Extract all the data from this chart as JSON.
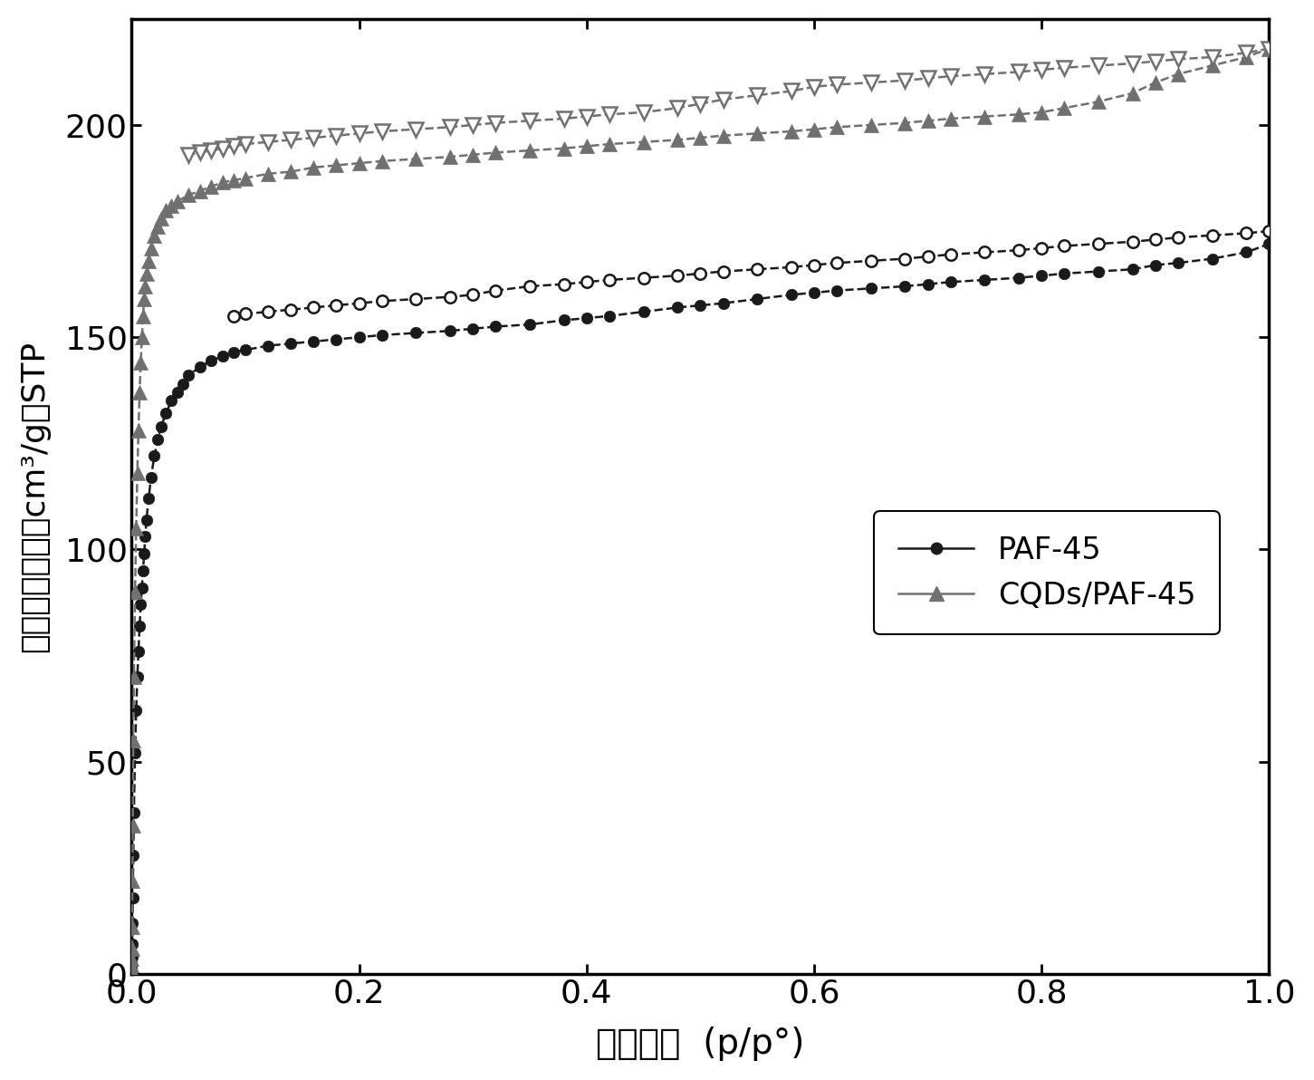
{
  "xlabel": "相对压力  (p/p°)",
  "ylabel": "吸（脱）附量（cm³/g）STP",
  "ylabel_vertical": "吸（脱）附量（cm³/g）STP",
  "xlim": [
    0.0,
    1.0
  ],
  "ylim": [
    0,
    225
  ],
  "yticks": [
    0,
    50,
    100,
    150,
    200
  ],
  "xticks": [
    0.0,
    0.2,
    0.4,
    0.6,
    0.8,
    1.0
  ],
  "legend_labels": [
    "PAF-45",
    "CQDs/PAF-45"
  ],
  "line_color_paf": "#1a1a1a",
  "line_color_cqd": "#707070",
  "figsize": [
    14.51,
    11.92
  ],
  "dpi": 100,
  "paf_ads_x": [
    5e-06,
    1e-05,
    3e-05,
    6e-05,
    0.0001,
    0.0002,
    0.0004,
    0.0007,
    0.001,
    0.0015,
    0.002,
    0.003,
    0.004,
    0.005,
    0.006,
    0.007,
    0.008,
    0.009,
    0.01,
    0.011,
    0.012,
    0.013,
    0.015,
    0.017,
    0.02,
    0.023,
    0.026,
    0.03,
    0.035,
    0.04,
    0.045,
    0.05,
    0.06,
    0.07,
    0.08,
    0.09,
    0.1,
    0.12,
    0.14,
    0.16,
    0.18,
    0.2,
    0.22,
    0.25,
    0.28,
    0.3,
    0.32,
    0.35,
    0.38,
    0.4,
    0.42,
    0.45,
    0.48,
    0.5,
    0.52,
    0.55,
    0.58,
    0.6,
    0.62,
    0.65,
    0.68,
    0.7,
    0.72,
    0.75,
    0.78,
    0.8,
    0.82,
    0.85,
    0.88,
    0.9,
    0.92,
    0.95,
    0.98,
    1.0
  ],
  "paf_ads_y": [
    0.3,
    0.5,
    0.8,
    1.5,
    2.5,
    4,
    7,
    12,
    18,
    28,
    38,
    52,
    62,
    70,
    76,
    82,
    87,
    91,
    95,
    99,
    103,
    107,
    112,
    117,
    122,
    126,
    129,
    132,
    135,
    137,
    139,
    141,
    143,
    144.5,
    145.5,
    146.5,
    147,
    148,
    148.5,
    149,
    149.5,
    150,
    150.5,
    151,
    151.5,
    152,
    152.5,
    153,
    154,
    154.5,
    155,
    156,
    157,
    157.5,
    158,
    159,
    160,
    160.5,
    161,
    161.5,
    162,
    162.5,
    163,
    163.5,
    164,
    164.5,
    165,
    165.5,
    166,
    167,
    167.5,
    168.5,
    170,
    172
  ],
  "paf_des_x": [
    1.0,
    0.98,
    0.95,
    0.92,
    0.9,
    0.88,
    0.85,
    0.82,
    0.8,
    0.78,
    0.75,
    0.72,
    0.7,
    0.68,
    0.65,
    0.62,
    0.6,
    0.58,
    0.55,
    0.52,
    0.5,
    0.48,
    0.45,
    0.42,
    0.4,
    0.38,
    0.35,
    0.32,
    0.3,
    0.28,
    0.25,
    0.22,
    0.2,
    0.18,
    0.16,
    0.14,
    0.12,
    0.1,
    0.09
  ],
  "paf_des_y": [
    175,
    174.5,
    174,
    173.5,
    173,
    172.5,
    172,
    171.5,
    171,
    170.5,
    170,
    169.5,
    169,
    168.5,
    168,
    167.5,
    167,
    166.5,
    166,
    165.5,
    165,
    164.5,
    164,
    163.5,
    163,
    162.5,
    162,
    161,
    160,
    159.5,
    159,
    158.5,
    158,
    157.5,
    157,
    156.5,
    156,
    155.5,
    155
  ],
  "cqd_ads_x": [
    5e-06,
    1e-05,
    3e-05,
    6e-05,
    0.0001,
    0.0002,
    0.0004,
    0.0007,
    0.001,
    0.0015,
    0.002,
    0.003,
    0.004,
    0.005,
    0.006,
    0.007,
    0.008,
    0.009,
    0.01,
    0.011,
    0.012,
    0.013,
    0.015,
    0.017,
    0.02,
    0.023,
    0.026,
    0.03,
    0.035,
    0.04,
    0.05,
    0.06,
    0.07,
    0.08,
    0.09,
    0.1,
    0.12,
    0.14,
    0.16,
    0.18,
    0.2,
    0.22,
    0.25,
    0.28,
    0.3,
    0.32,
    0.35,
    0.38,
    0.4,
    0.42,
    0.45,
    0.48,
    0.5,
    0.52,
    0.55,
    0.58,
    0.6,
    0.62,
    0.65,
    0.68,
    0.7,
    0.72,
    0.75,
    0.78,
    0.8,
    0.82,
    0.85,
    0.88,
    0.9,
    0.92,
    0.95,
    0.98,
    1.0
  ],
  "cqd_ads_y": [
    0.3,
    0.5,
    1,
    2,
    3.5,
    6,
    11,
    22,
    35,
    55,
    70,
    90,
    105,
    118,
    128,
    137,
    144,
    150,
    155,
    159,
    162,
    165,
    168,
    171,
    174,
    176,
    178,
    180,
    181,
    182,
    183.5,
    184.5,
    185.5,
    186.5,
    187,
    187.5,
    188.5,
    189,
    190,
    190.5,
    191,
    191.5,
    192,
    192.5,
    193,
    193.5,
    194,
    194.5,
    195,
    195.5,
    196,
    196.5,
    197,
    197.5,
    198,
    198.5,
    199,
    199.5,
    200,
    200.5,
    201,
    201.5,
    202,
    202.5,
    203,
    204,
    205.5,
    207.5,
    210,
    212,
    214,
    216,
    218
  ],
  "cqd_des_x": [
    1.0,
    0.98,
    0.95,
    0.92,
    0.9,
    0.88,
    0.85,
    0.82,
    0.8,
    0.78,
    0.75,
    0.72,
    0.7,
    0.68,
    0.65,
    0.62,
    0.6,
    0.58,
    0.55,
    0.52,
    0.5,
    0.48,
    0.45,
    0.42,
    0.4,
    0.38,
    0.35,
    0.32,
    0.3,
    0.28,
    0.25,
    0.22,
    0.2,
    0.18,
    0.16,
    0.14,
    0.12,
    0.1,
    0.09,
    0.08,
    0.07,
    0.06,
    0.05
  ],
  "cqd_des_y": [
    218,
    217,
    216,
    215.5,
    215,
    214.5,
    214,
    213.5,
    213,
    212.5,
    212,
    211.5,
    211,
    210.5,
    210,
    209.5,
    209,
    208,
    207,
    206,
    205,
    204,
    203,
    202.5,
    202,
    201.5,
    201,
    200.5,
    200,
    199.5,
    199,
    198.5,
    198,
    197.5,
    197,
    196.5,
    196,
    195.5,
    195,
    194.5,
    194,
    193.5,
    193
  ]
}
